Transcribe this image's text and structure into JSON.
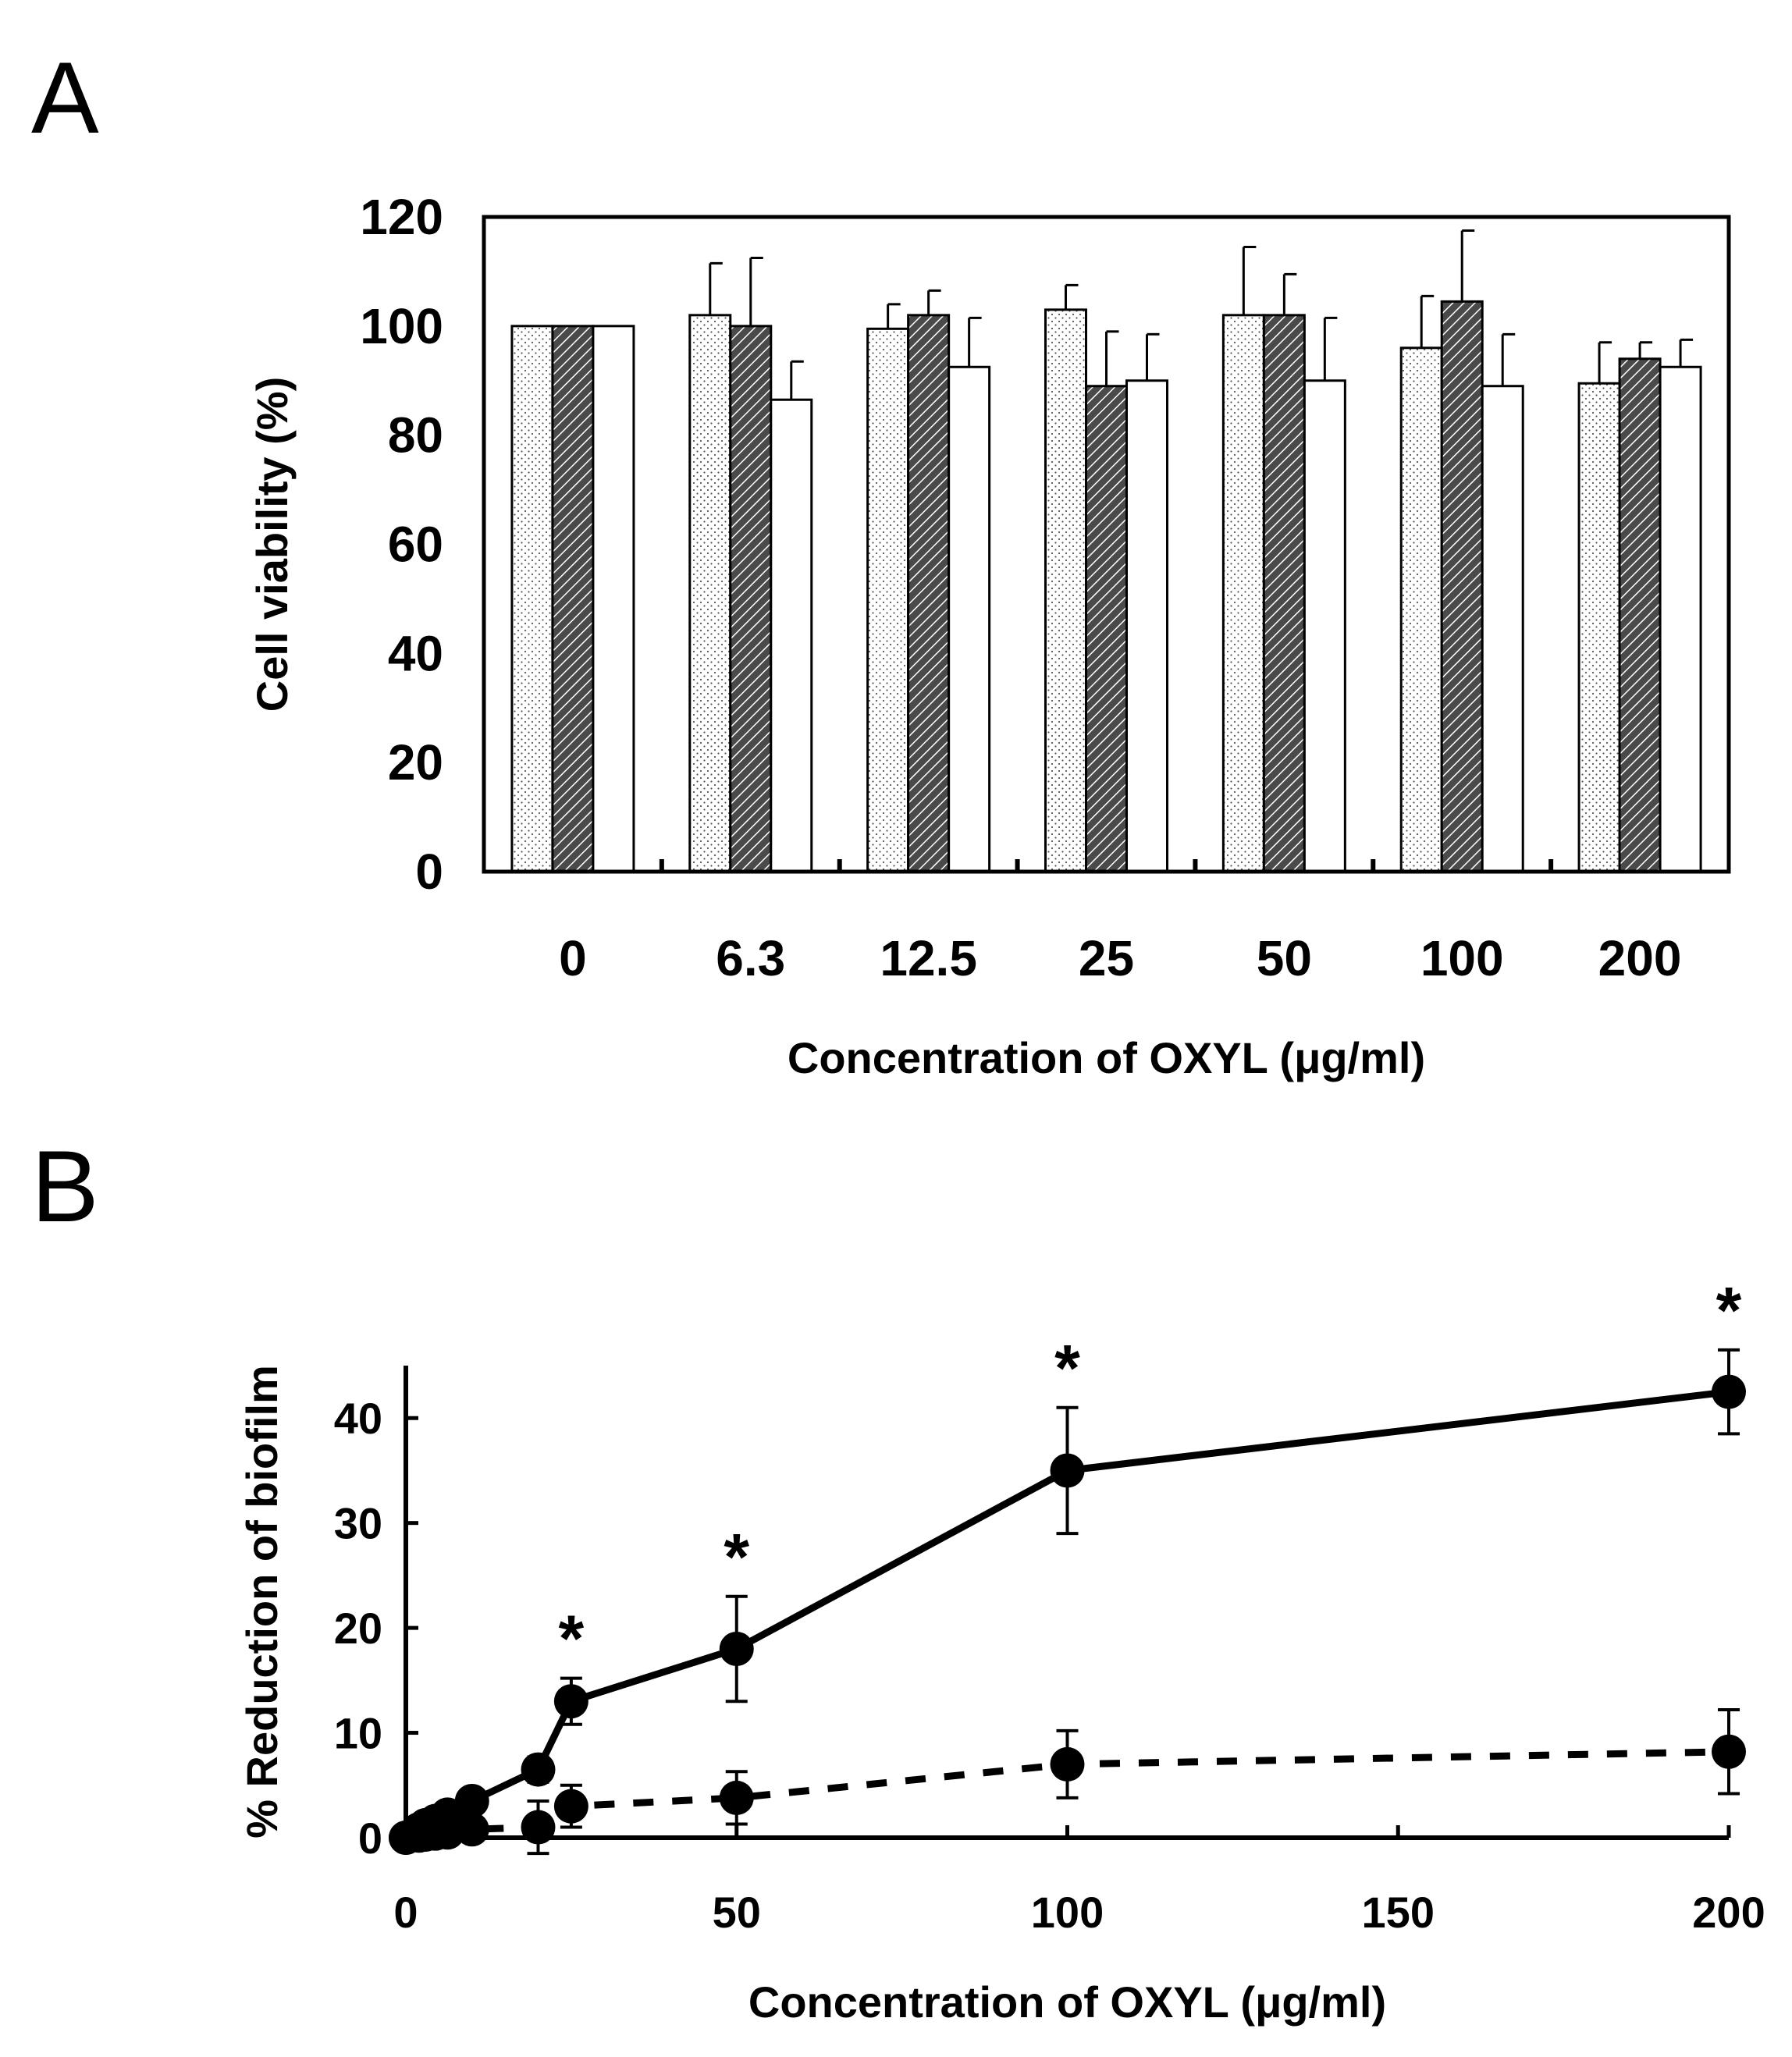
{
  "panel_labels": {
    "a": "A",
    "b": "B"
  },
  "chart_data": [
    {
      "id": "A",
      "type": "bar",
      "xlabel": "Concentration of OXYL (μg/ml)",
      "ylabel": "Cell viability (%)",
      "ylim": [
        0,
        120
      ],
      "yticks": [
        0,
        20,
        40,
        60,
        80,
        100,
        120
      ],
      "categories": [
        "0",
        "6.3",
        "12.5",
        "25",
        "50",
        "100",
        "200"
      ],
      "grid": false,
      "legend": "none",
      "series": [
        {
          "pattern": "dots",
          "values": [
            100,
            102,
            99.5,
            103,
            102,
            96,
            89.5
          ],
          "errors": [
            0,
            9.5,
            4.5,
            4.5,
            12.5,
            9.5,
            7.5
          ]
        },
        {
          "pattern": "hatch",
          "values": [
            100,
            100,
            102,
            89,
            102,
            104.5,
            94
          ],
          "errors": [
            0,
            12.5,
            4.5,
            10,
            7.5,
            13,
            3
          ]
        },
        {
          "pattern": "white",
          "values": [
            100,
            86.5,
            92.5,
            90,
            90,
            89,
            92.5
          ],
          "errors": [
            0,
            7,
            9,
            8.5,
            11.5,
            9.5,
            5
          ]
        }
      ]
    },
    {
      "id": "B",
      "type": "line",
      "xlabel": "Concentration of OXYL (μg/ml)",
      "ylabel": "% Reduction of biofilm",
      "xlim": [
        0,
        200
      ],
      "ylim": [
        0,
        45
      ],
      "xticks": [
        0,
        50,
        100,
        150,
        200
      ],
      "yticks": [
        0,
        10,
        20,
        30,
        40
      ],
      "grid": false,
      "legend": "none",
      "series": [
        {
          "style": "solid",
          "x": [
            0,
            2,
            3,
            4.5,
            6.3,
            10,
            20,
            25,
            50,
            100,
            200
          ],
          "y": [
            0,
            0.8,
            1.2,
            1.6,
            2.2,
            3.5,
            6.5,
            13,
            18,
            35,
            42.5
          ],
          "errors": [
            0,
            0.5,
            0.5,
            0.6,
            0.8,
            1,
            1.2,
            2.2,
            5,
            6,
            4
          ],
          "significant": [
            false,
            false,
            false,
            false,
            false,
            false,
            false,
            true,
            true,
            true,
            true
          ]
        },
        {
          "style": "dashed",
          "x": [
            0,
            2,
            3,
            4.5,
            6.3,
            10,
            20,
            25,
            50,
            100,
            200
          ],
          "y": [
            0,
            0.2,
            0.3,
            0.4,
            0.5,
            0.8,
            1,
            3,
            3.8,
            7,
            8.2
          ],
          "errors": [
            0,
            0.3,
            0.3,
            0.3,
            0.3,
            0.5,
            2.5,
            2,
            2.5,
            3.2,
            4
          ],
          "significant": [
            false,
            false,
            false,
            false,
            false,
            false,
            false,
            false,
            false,
            false,
            false
          ]
        }
      ],
      "significance_marker": "*"
    }
  ]
}
